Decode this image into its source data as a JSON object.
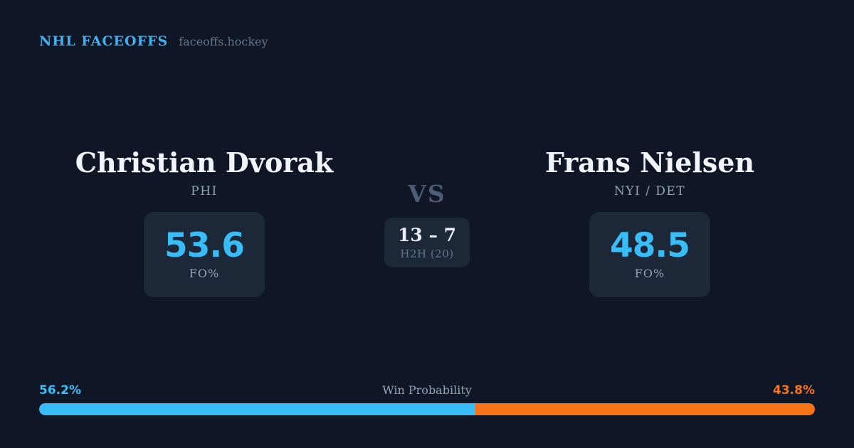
{
  "header": {
    "brand": "NHL FACEOFFS",
    "domain": "faceoffs.hockey"
  },
  "matchup": {
    "vs_label": "VS",
    "h2h_score": "13 – 7",
    "h2h_label": "H2H (20)"
  },
  "players": [
    {
      "name": "Christian Dvorak",
      "team": "PHI",
      "fo_pct": "53.6",
      "stat_label": "FO%"
    },
    {
      "name": "Frans Nielsen",
      "team": "NYI / DET",
      "fo_pct": "48.5",
      "stat_label": "FO%"
    }
  ],
  "win_probability": {
    "title": "Win Probability",
    "left_label": "56.2%",
    "right_label": "43.8%",
    "left_pct": 56.2,
    "right_pct": 43.8
  },
  "colors": {
    "background": "#0f1726",
    "card_bg": "#1c2737",
    "accent_blue": "#38bdf8",
    "accent_orange": "#f97316",
    "brand_blue": "#41b0ee",
    "name_white": "#f1f5f9",
    "muted": "#94a3b8",
    "muted_dark": "#64748b",
    "vs_color": "#4e5d76",
    "score_white": "#e9eef5"
  }
}
